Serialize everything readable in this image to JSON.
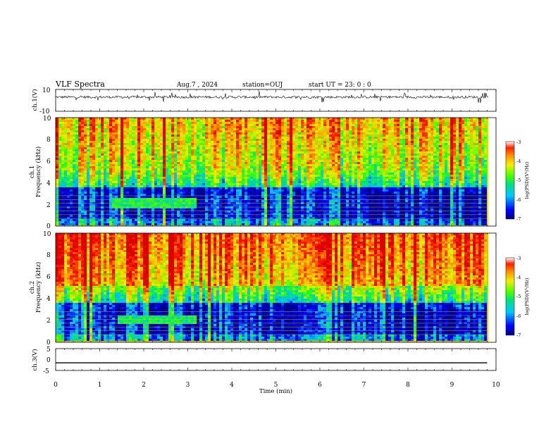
{
  "header": {
    "title": "VLF Spectra",
    "date": "Aug.7 , 2024",
    "station": "station=OUJ",
    "start": "start UT = 23: 0 : 0"
  },
  "chart_data": [
    {
      "type": "line",
      "panel": "ch1-waveform",
      "ylabel": "ch.1(V)",
      "ylim": [
        -10,
        10
      ],
      "yticks": [
        "10",
        "-10"
      ],
      "xlim": [
        0,
        10
      ],
      "description_values": "noisy waveform around ~3 V with sporadic spikes"
    },
    {
      "type": "heatmap",
      "panel": "ch1-spectrogram",
      "ylabel": "ch.1",
      "ylabel2": "Frequency (kHz)",
      "ylim": [
        0,
        10
      ],
      "yticks": [
        "0",
        "2",
        "4",
        "6",
        "8",
        "10"
      ],
      "xlim": [
        0,
        10
      ],
      "colorbar": {
        "label": "log(PSD)(V²/Hz)",
        "range": [
          -7,
          -3
        ],
        "ticks": [
          "-3",
          "-4",
          "-5",
          "-6",
          "-7"
        ]
      },
      "features": {
        "hiss_band_khz": [
          1.5,
          2.5
        ],
        "hiss_time_min": [
          1.3,
          3.2
        ],
        "blue_floor_khz": [
          0.5,
          3.5
        ]
      }
    },
    {
      "type": "heatmap",
      "panel": "ch2-spectrogram",
      "ylabel": "ch.2",
      "ylabel2": "Frequency (kHz)",
      "ylim": [
        0,
        10
      ],
      "yticks": [
        "0",
        "2",
        "4",
        "6",
        "8",
        "10"
      ],
      "xlim": [
        0,
        10
      ],
      "colorbar": {
        "label": "log(PSD)(V²/Hz)",
        "range": [
          -7,
          -3
        ],
        "ticks": [
          "-3",
          "-4",
          "-5",
          "-6",
          "-7"
        ]
      },
      "features": {
        "hiss_band_khz": [
          1.6,
          2.4
        ],
        "hiss_time_min": [
          1.4,
          3.2
        ]
      }
    },
    {
      "type": "line",
      "panel": "ch3-waveform",
      "ylabel": "ch.3(V)",
      "ylim": [
        -5,
        5
      ],
      "yticks": [
        "5",
        "0",
        "-5"
      ],
      "xlim": [
        0,
        10
      ],
      "x": [
        0,
        9.8
      ],
      "y": [
        -1.5,
        -1.5
      ]
    }
  ],
  "xaxis": {
    "label": "Time (min)",
    "ticks": [
      "0",
      "1",
      "2",
      "3",
      "4",
      "5",
      "6",
      "7",
      "8",
      "9",
      "10"
    ]
  }
}
